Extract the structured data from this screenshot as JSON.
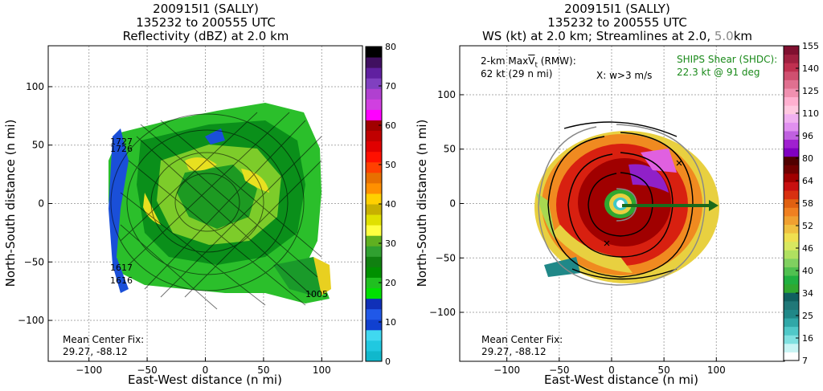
{
  "left": {
    "title": [
      "200915I1 (SALLY)",
      "135232 to 200555 UTC",
      "Reflectivity (dBZ) at 2.0 km"
    ],
    "xlabel": "East-West distance (n mi)",
    "ylabel": "North-South distance (n mi)",
    "mean_center_label": "Mean Center Fix:",
    "mean_center_value": "29.27, -88.12",
    "flight_labels": [
      "1727",
      "1726",
      "1617",
      "1616",
      "1005"
    ],
    "colorbar": {
      "ticks": [
        "0",
        "10",
        "20",
        "30",
        "40",
        "50",
        "60",
        "70",
        "80"
      ],
      "colors": [
        "#10b8cc",
        "#20c8e0",
        "#40d8f0",
        "#1040d0",
        "#2058e8",
        "#1030b8",
        "#00e000",
        "#20c020",
        "#009000",
        "#108010",
        "#30a030",
        "#60b020",
        "#ffff40",
        "#e0e000",
        "#c8b000",
        "#ffd000",
        "#ff9000",
        "#e87000",
        "#ff4000",
        "#ff1000",
        "#e00000",
        "#c00000",
        "#a00000",
        "#ff00ff",
        "#d040e0",
        "#b040d0",
        "#8040c0",
        "#6020a0",
        "#401060",
        "#000000"
      ]
    },
    "chart_data": {
      "type": "heatmap",
      "title": "Reflectivity (dBZ) at 2.0 km",
      "xlabel": "East-West distance (n mi)",
      "ylabel": "North-South distance (n mi)",
      "xlim": [
        -135,
        135
      ],
      "ylim": [
        -135,
        135
      ],
      "xticks": [
        -100,
        -50,
        0,
        50,
        100
      ],
      "yticks": [
        -100,
        -50,
        0,
        50,
        100
      ],
      "colorbar_range": [
        0,
        80
      ],
      "grid": true
    }
  },
  "right": {
    "title_lines": [
      "200915I1 (SALLY)",
      "135232 to 200555 UTC"
    ],
    "title3_main": "WS (kt) at 2.0 km; Streamlines at 2.0, ",
    "title3_gray": "5.0",
    "title3_end": "km",
    "maxv_label_pre": "2-km Max",
    "maxv_symbol": "V",
    "maxv_sub": "t",
    "maxv_label_post": " (RMW):",
    "maxv_value": "62 kt (29 n mi)",
    "wmarker": "X: w>3 m/s",
    "ships_label": "SHIPS Shear (SHDC):",
    "ships_value": "22.3 kt @ 91 deg",
    "xlabel": "East-West distance (n mi)",
    "ylabel": "North-South distance (n mi)",
    "mean_center_label": "Mean Center Fix:",
    "mean_center_value": "29.27, -88.12",
    "colorbar": {
      "ticks": [
        "7",
        "16",
        "25",
        "34",
        "40",
        "46",
        "52",
        "58",
        "64",
        "80",
        "96",
        "110",
        "125",
        "140",
        "155"
      ],
      "colors": [
        "#ffffff",
        "#c8f4f4",
        "#80e0e0",
        "#50c8c8",
        "#30a8a8",
        "#208888",
        "#207878",
        "#106060",
        "#30a830",
        "#20b040",
        "#50c050",
        "#80d060",
        "#b0e060",
        "#d8e860",
        "#f0e050",
        "#f0c040",
        "#f0a030",
        "#f08020",
        "#e06010",
        "#d83010",
        "#c81010",
        "#a00000",
        "#700000",
        "#500000",
        "#8000c0",
        "#a020d0",
        "#c060e0",
        "#e090f0",
        "#f0b0f0",
        "#ffc8e0",
        "#ffb0d0",
        "#f090b0",
        "#e07090",
        "#d05070",
        "#c03050",
        "#a02040",
        "#801030"
      ]
    },
    "chart_data": {
      "type": "heatmap",
      "title": "WS (kt) at 2.0 km; Streamlines at 2.0, 5.0km",
      "xlabel": "East-West distance (n mi)",
      "ylabel": "North-South distance (n mi)",
      "xlim": [
        -145,
        165
      ],
      "ylim": [
        -145,
        145
      ],
      "xticks": [
        -100,
        -50,
        0,
        50,
        100
      ],
      "yticks": [
        -100,
        -50,
        0,
        50,
        100
      ],
      "colorbar_range": [
        7,
        160
      ],
      "max_wind_kt": 62,
      "rmw_nmi": 29,
      "shear_kt": 22.3,
      "shear_dir_deg": 91,
      "grid": true
    }
  },
  "colors": {
    "ships": "#1a8a1a",
    "shear_arrow": "#1a6a1a",
    "gray_text": "#888888"
  }
}
